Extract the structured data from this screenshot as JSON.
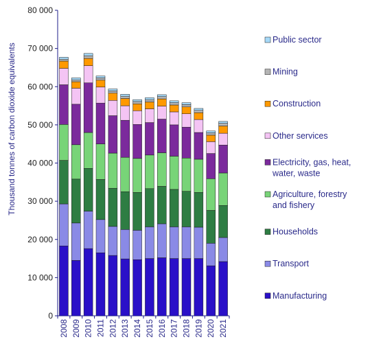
{
  "chart_data": {
    "type": "bar",
    "stacked": true,
    "categories": [
      "2008",
      "2009",
      "2010",
      "2011",
      "2012",
      "2013",
      "2014",
      "2015",
      "2016",
      "2017",
      "2018",
      "2019",
      "2020",
      "2021"
    ],
    "ylabel": "Thousand tonnes of carbon dioxide equivalents",
    "ylim": [
      0,
      80000
    ],
    "yticks": [
      0,
      10000,
      20000,
      30000,
      40000,
      50000,
      60000,
      70000,
      80000
    ],
    "ytick_labels": [
      "0",
      "10 000",
      "20 000",
      "30 000",
      "40 000",
      "50 000",
      "60 000",
      "70 000",
      "80 000"
    ],
    "grid": false,
    "legend_placement": "right",
    "series": [
      {
        "name": "Manufacturing",
        "color": "#2a10c8",
        "values": [
          18300,
          14500,
          17600,
          16500,
          15800,
          14900,
          14700,
          15000,
          15200,
          15000,
          15000,
          15000,
          13100,
          14200
        ]
      },
      {
        "name": "Transport",
        "color": "#8a8ae6",
        "values": [
          11000,
          9800,
          9800,
          8700,
          7600,
          7700,
          7700,
          8300,
          8900,
          8300,
          8300,
          8200,
          5900,
          6300
        ]
      },
      {
        "name": "Households",
        "color": "#2e7d43",
        "values": [
          11400,
          11500,
          11200,
          10500,
          10000,
          9900,
          9900,
          10000,
          9800,
          9800,
          9300,
          9100,
          8600,
          8400
        ]
      },
      {
        "name": "Agriculture, forestry\nand fishery",
        "color": "#78d478",
        "values": [
          9400,
          9000,
          9400,
          9300,
          9200,
          9000,
          8900,
          8800,
          8800,
          8700,
          8700,
          8700,
          8300,
          8500
        ]
      },
      {
        "name": "Electricity, gas, heat,\nwater, waste",
        "color": "#7b2a9c",
        "values": [
          10400,
          10600,
          13000,
          10700,
          9800,
          9700,
          8900,
          8500,
          8800,
          8200,
          8100,
          7000,
          6600,
          7300
        ]
      },
      {
        "name": "Other services",
        "color": "#f4c4f4",
        "values": [
          4300,
          4200,
          4500,
          4200,
          4000,
          3800,
          3600,
          3600,
          3400,
          3400,
          3500,
          3400,
          3100,
          3100
        ]
      },
      {
        "name": "Construction",
        "color": "#ff9900",
        "values": [
          1900,
          1700,
          1900,
          1800,
          1900,
          1900,
          1800,
          1800,
          1900,
          1800,
          1800,
          1800,
          1700,
          1900
        ]
      },
      {
        "name": "Mining",
        "color": "#b4b4b4",
        "values": [
          500,
          500,
          700,
          600,
          600,
          600,
          600,
          600,
          600,
          600,
          600,
          600,
          600,
          700
        ]
      },
      {
        "name": "Public sector",
        "color": "#a6d9f7",
        "values": [
          500,
          500,
          600,
          500,
          500,
          500,
          500,
          500,
          500,
          500,
          500,
          500,
          500,
          500
        ]
      }
    ]
  }
}
